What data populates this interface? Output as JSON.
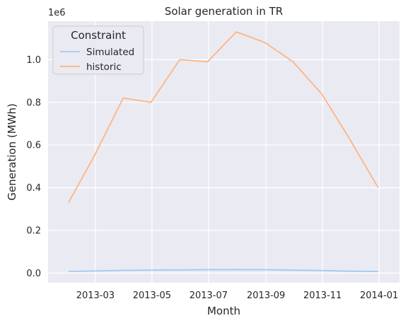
{
  "chart_data": {
    "type": "line",
    "title": "Solar generation in TR",
    "xlabel": "Month",
    "ylabel": "Generation (MWh)",
    "y_offset_label": "1e6",
    "x_ticks": [
      "2013-03",
      "2013-05",
      "2013-07",
      "2013-09",
      "2013-11",
      "2014-01"
    ],
    "y_ticks": [
      "0.0",
      "0.2",
      "0.4",
      "0.6",
      "0.8",
      "1.0"
    ],
    "ylim": [
      -45000,
      1180000
    ],
    "xlim": [
      "2013-01-09",
      "2014-01-23"
    ],
    "grid": true,
    "legend": {
      "title": "Constraint",
      "placement": "top-left"
    },
    "x": [
      "2013-01-31",
      "2013-02-28",
      "2013-03-31",
      "2013-04-30",
      "2013-05-31",
      "2013-06-30",
      "2013-07-31",
      "2013-08-31",
      "2013-09-30",
      "2013-10-31",
      "2013-11-30",
      "2013-12-31"
    ],
    "series": [
      {
        "name": "Simulated",
        "color": "#a1c9f4",
        "values": [
          8000,
          10000,
          13000,
          14000,
          15000,
          16000,
          16500,
          16000,
          14000,
          12000,
          9000,
          8000
        ]
      },
      {
        "name": "historic",
        "color": "#ffb482",
        "values": [
          330000,
          550000,
          820000,
          800000,
          1000000,
          990000,
          1130000,
          1080000,
          990000,
          840000,
          630000,
          400000
        ]
      }
    ]
  }
}
